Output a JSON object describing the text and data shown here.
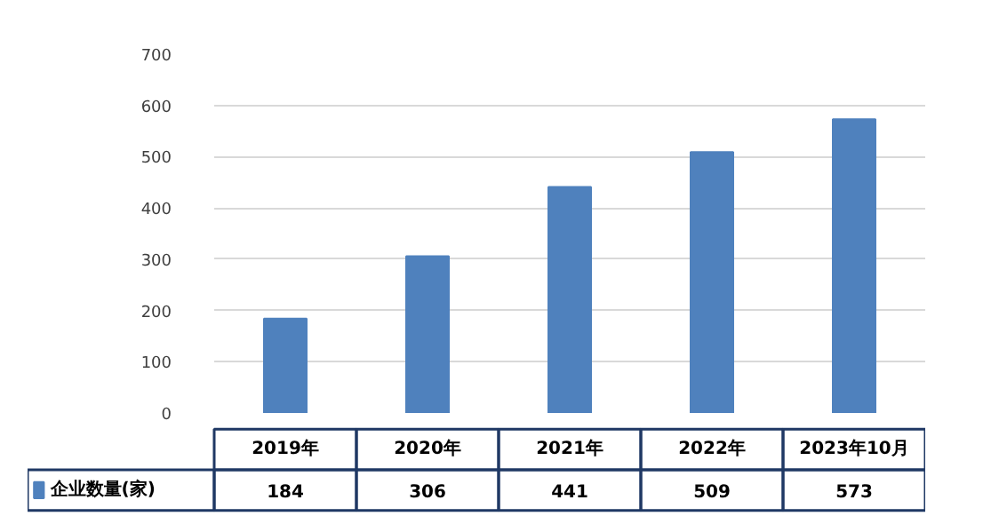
{
  "chart_data": {
    "type": "bar",
    "categories": [
      "2019年",
      "2020年",
      "2021年",
      "2022年",
      "2023年10月"
    ],
    "series": [
      {
        "name": "企业数量(家)",
        "color": "#4f81bd",
        "values": [
          184,
          306,
          441,
          509,
          573
        ]
      }
    ],
    "ylim": [
      0,
      700
    ],
    "yticks": [
      0,
      100,
      200,
      300,
      400,
      500,
      600,
      700
    ],
    "grid": "y",
    "data_labels": true
  }
}
